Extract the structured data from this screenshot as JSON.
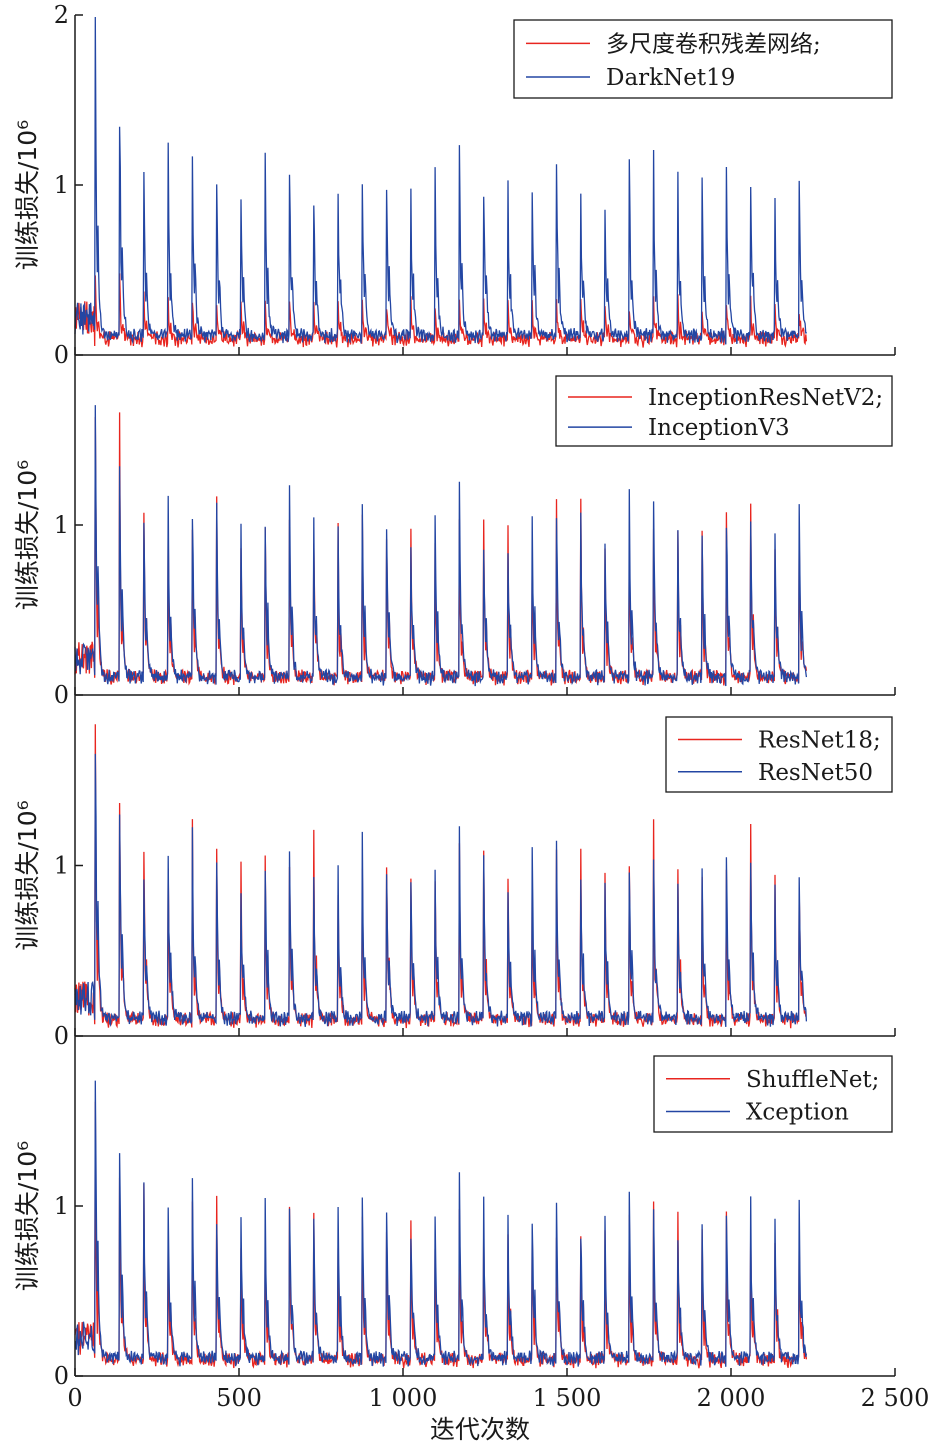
{
  "colors": {
    "series_a": "#e8251f",
    "series_b": "#2346a3",
    "axis": "#1a1a1a"
  },
  "chart_data": [
    {
      "type": "line",
      "ylabel": "训练损失/10⁶",
      "ylim": [
        0,
        2
      ],
      "yticks": [
        "0",
        "1",
        "2"
      ],
      "xlim": [
        0,
        2500
      ],
      "legend_position": "top-right",
      "series": [
        {
          "name": "多尺度卷积残差网络;",
          "color": "#e8251f",
          "peak_height": 0.25,
          "floor": 0.04,
          "iterations": 2230
        },
        {
          "name": "DarkNet19",
          "color": "#2346a3",
          "peak_height": 1.05,
          "floor": 0.06,
          "iterations": 2230
        }
      ]
    },
    {
      "type": "line",
      "ylabel": "训练损失/10⁶",
      "ylim": [
        0,
        2
      ],
      "yticks": [
        "0",
        "1"
      ],
      "xlim": [
        0,
        2500
      ],
      "legend_position": "top-right",
      "series": [
        {
          "name": "InceptionResNetV2;",
          "color": "#e8251f",
          "peak_height": 1.0,
          "floor": 0.05,
          "iterations": 2230
        },
        {
          "name": "InceptionV3",
          "color": "#2346a3",
          "peak_height": 1.05,
          "floor": 0.05,
          "iterations": 2230
        }
      ]
    },
    {
      "type": "line",
      "ylabel": "训练损失/10⁶",
      "ylim": [
        0,
        2
      ],
      "yticks": [
        "0",
        "1"
      ],
      "xlim": [
        0,
        2500
      ],
      "legend_position": "top-right",
      "series": [
        {
          "name": "ResNet18;",
          "color": "#e8251f",
          "peak_height": 1.08,
          "floor": 0.04,
          "iterations": 2230
        },
        {
          "name": "ResNet50",
          "color": "#2346a3",
          "peak_height": 1.0,
          "floor": 0.05,
          "iterations": 2230
        }
      ]
    },
    {
      "type": "line",
      "ylabel": "训练损失/10⁶",
      "ylim": [
        0,
        2
      ],
      "yticks": [
        "0",
        "1"
      ],
      "xlim": [
        0,
        2500
      ],
      "xticks": [
        "0",
        "500",
        "1 000",
        "1 500",
        "2 000",
        "2 500"
      ],
      "xlabel": "迭代次数",
      "legend_position": "top-right",
      "series": [
        {
          "name": "ShuffleNet;",
          "color": "#e8251f",
          "peak_height": 0.9,
          "floor": 0.04,
          "iterations": 2230
        },
        {
          "name": "Xception",
          "color": "#2346a3",
          "peak_height": 1.0,
          "floor": 0.05,
          "iterations": 2230
        }
      ]
    }
  ]
}
